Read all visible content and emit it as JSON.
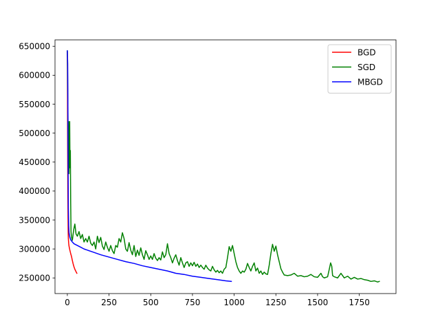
{
  "chart_data": {
    "type": "line",
    "title": "",
    "xlabel": "",
    "ylabel": "",
    "xlim": [
      -74,
      1970
    ],
    "ylim": [
      223000,
      661000
    ],
    "x_ticks": [
      0,
      250,
      500,
      750,
      1000,
      1250,
      1500,
      1750
    ],
    "y_ticks": [
      250000,
      300000,
      350000,
      400000,
      450000,
      500000,
      550000,
      600000,
      650000
    ],
    "grid": false,
    "legend": "top-right",
    "series": [
      {
        "name": "BGD",
        "color": "#ff0000",
        "points": [
          [
            0,
            640000
          ],
          [
            1,
            560000
          ],
          [
            2,
            470000
          ],
          [
            3,
            400000
          ],
          [
            4,
            355000
          ],
          [
            5,
            330000
          ],
          [
            6,
            318000
          ],
          [
            8,
            310000
          ],
          [
            10,
            305000
          ],
          [
            15,
            298000
          ],
          [
            20,
            292000
          ],
          [
            25,
            287000
          ],
          [
            30,
            280000
          ],
          [
            35,
            274000
          ],
          [
            40,
            269000
          ],
          [
            45,
            265000
          ],
          [
            50,
            262000
          ],
          [
            57,
            258000
          ]
        ]
      },
      {
        "name": "SGD",
        "color": "#008000",
        "points": [
          [
            0,
            642000
          ],
          [
            3,
            560000
          ],
          [
            5,
            470000
          ],
          [
            7,
            520000
          ],
          [
            8,
            480000
          ],
          [
            10,
            430000
          ],
          [
            12,
            500000
          ],
          [
            14,
            520000
          ],
          [
            16,
            440000
          ],
          [
            18,
            470000
          ],
          [
            20,
            380000
          ],
          [
            22,
            330000
          ],
          [
            25,
            320000
          ],
          [
            30,
            315000
          ],
          [
            38,
            333000
          ],
          [
            45,
            343000
          ],
          [
            52,
            326000
          ],
          [
            60,
            322000
          ],
          [
            70,
            330000
          ],
          [
            80,
            318000
          ],
          [
            90,
            325000
          ],
          [
            100,
            312000
          ],
          [
            110,
            318000
          ],
          [
            120,
            312000
          ],
          [
            130,
            322000
          ],
          [
            140,
            310000
          ],
          [
            150,
            306000
          ],
          [
            160,
            312000
          ],
          [
            170,
            300000
          ],
          [
            180,
            322000
          ],
          [
            190,
            311000
          ],
          [
            200,
            320000
          ],
          [
            210,
            305000
          ],
          [
            220,
            299000
          ],
          [
            230,
            312000
          ],
          [
            240,
            303000
          ],
          [
            250,
            296000
          ],
          [
            260,
            306000
          ],
          [
            270,
            297000
          ],
          [
            280,
            292000
          ],
          [
            290,
            306000
          ],
          [
            300,
            303000
          ],
          [
            310,
            318000
          ],
          [
            320,
            312000
          ],
          [
            330,
            328000
          ],
          [
            340,
            318000
          ],
          [
            350,
            300000
          ],
          [
            360,
            296000
          ],
          [
            370,
            311000
          ],
          [
            380,
            298000
          ],
          [
            390,
            290000
          ],
          [
            400,
            306000
          ],
          [
            410,
            287000
          ],
          [
            420,
            298000
          ],
          [
            430,
            289000
          ],
          [
            440,
            302000
          ],
          [
            450,
            290000
          ],
          [
            460,
            282000
          ],
          [
            470,
            297000
          ],
          [
            480,
            290000
          ],
          [
            490,
            282000
          ],
          [
            500,
            288000
          ],
          [
            510,
            282000
          ],
          [
            520,
            292000
          ],
          [
            530,
            284000
          ],
          [
            540,
            280000
          ],
          [
            550,
            285000
          ],
          [
            560,
            281000
          ],
          [
            570,
            295000
          ],
          [
            580,
            285000
          ],
          [
            590,
            290000
          ],
          [
            600,
            309000
          ],
          [
            610,
            292000
          ],
          [
            620,
            285000
          ],
          [
            630,
            276000
          ],
          [
            640,
            284000
          ],
          [
            650,
            290000
          ],
          [
            660,
            280000
          ],
          [
            670,
            272000
          ],
          [
            680,
            285000
          ],
          [
            690,
            276000
          ],
          [
            700,
            268000
          ],
          [
            710,
            276000
          ],
          [
            720,
            278000
          ],
          [
            730,
            270000
          ],
          [
            740,
            276000
          ],
          [
            750,
            271000
          ],
          [
            760,
            277000
          ],
          [
            770,
            270000
          ],
          [
            780,
            274000
          ],
          [
            790,
            268000
          ],
          [
            800,
            272000
          ],
          [
            810,
            268000
          ],
          [
            820,
            265000
          ],
          [
            830,
            272000
          ],
          [
            840,
            267000
          ],
          [
            850,
            264000
          ],
          [
            860,
            262000
          ],
          [
            870,
            270000
          ],
          [
            880,
            264000
          ],
          [
            890,
            260000
          ],
          [
            900,
            263000
          ],
          [
            910,
            259000
          ],
          [
            920,
            262000
          ],
          [
            930,
            258000
          ],
          [
            940,
            265000
          ],
          [
            950,
            268000
          ],
          [
            960,
            285000
          ],
          [
            970,
            304000
          ],
          [
            980,
            296000
          ],
          [
            990,
            306000
          ],
          [
            1000,
            292000
          ],
          [
            1010,
            278000
          ],
          [
            1020,
            268000
          ],
          [
            1030,
            262000
          ],
          [
            1040,
            258000
          ],
          [
            1050,
            262000
          ],
          [
            1060,
            260000
          ],
          [
            1070,
            265000
          ],
          [
            1080,
            275000
          ],
          [
            1090,
            268000
          ],
          [
            1100,
            262000
          ],
          [
            1110,
            270000
          ],
          [
            1120,
            276000
          ],
          [
            1130,
            262000
          ],
          [
            1140,
            267000
          ],
          [
            1150,
            258000
          ],
          [
            1160,
            262000
          ],
          [
            1170,
            256000
          ],
          [
            1180,
            260000
          ],
          [
            1190,
            257000
          ],
          [
            1200,
            256000
          ],
          [
            1210,
            272000
          ],
          [
            1220,
            292000
          ],
          [
            1230,
            308000
          ],
          [
            1240,
            296000
          ],
          [
            1250,
            305000
          ],
          [
            1260,
            290000
          ],
          [
            1270,
            278000
          ],
          [
            1280,
            266000
          ],
          [
            1290,
            260000
          ],
          [
            1300,
            255000
          ],
          [
            1320,
            254000
          ],
          [
            1340,
            255000
          ],
          [
            1360,
            258000
          ],
          [
            1380,
            253000
          ],
          [
            1400,
            254000
          ],
          [
            1420,
            252000
          ],
          [
            1440,
            253000
          ],
          [
            1460,
            256000
          ],
          [
            1480,
            252000
          ],
          [
            1500,
            251000
          ],
          [
            1520,
            258000
          ],
          [
            1530,
            252000
          ],
          [
            1540,
            250000
          ],
          [
            1560,
            252000
          ],
          [
            1570,
            265000
          ],
          [
            1578,
            276000
          ],
          [
            1585,
            270000
          ],
          [
            1590,
            254000
          ],
          [
            1600,
            252000
          ],
          [
            1620,
            250000
          ],
          [
            1640,
            258000
          ],
          [
            1660,
            250000
          ],
          [
            1680,
            253000
          ],
          [
            1700,
            248000
          ],
          [
            1720,
            251000
          ],
          [
            1740,
            248000
          ],
          [
            1760,
            249000
          ],
          [
            1780,
            247000
          ],
          [
            1800,
            246000
          ],
          [
            1820,
            244000
          ],
          [
            1840,
            245000
          ],
          [
            1860,
            243000
          ],
          [
            1870,
            244000
          ]
        ]
      },
      {
        "name": "MBGD",
        "color": "#0000ff",
        "points": [
          [
            0,
            642000
          ],
          [
            2,
            620000
          ],
          [
            3,
            560000
          ],
          [
            4,
            480000
          ],
          [
            5,
            420000
          ],
          [
            6,
            370000
          ],
          [
            8,
            340000
          ],
          [
            10,
            328000
          ],
          [
            15,
            320000
          ],
          [
            20,
            316000
          ],
          [
            30,
            312000
          ],
          [
            40,
            309000
          ],
          [
            60,
            306000
          ],
          [
            80,
            303000
          ],
          [
            100,
            300000
          ],
          [
            150,
            295000
          ],
          [
            200,
            290000
          ],
          [
            250,
            286000
          ],
          [
            300,
            282000
          ],
          [
            350,
            278000
          ],
          [
            400,
            275000
          ],
          [
            450,
            271000
          ],
          [
            500,
            268000
          ],
          [
            550,
            265000
          ],
          [
            600,
            262000
          ],
          [
            650,
            258000
          ],
          [
            700,
            256000
          ],
          [
            750,
            253000
          ],
          [
            800,
            251000
          ],
          [
            850,
            249000
          ],
          [
            900,
            247000
          ],
          [
            950,
            245000
          ],
          [
            983,
            244000
          ]
        ]
      }
    ]
  }
}
